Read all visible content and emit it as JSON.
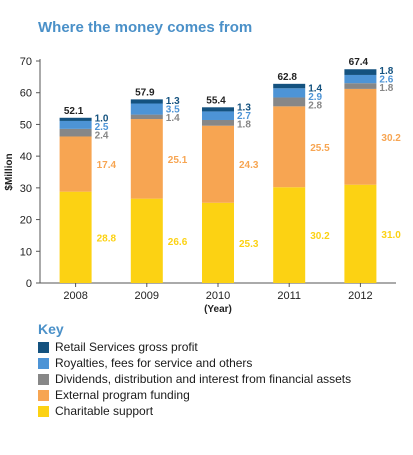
{
  "title": "Where the money comes from",
  "key": {
    "title": "Key"
  },
  "chart_data": {
    "type": "bar",
    "stacked": true,
    "title": "Where the money comes from",
    "xlabel": "(Year)",
    "ylabel": "$Million",
    "ylim": [
      0,
      70
    ],
    "yticks": [
      0,
      10,
      20,
      30,
      40,
      50,
      60,
      70
    ],
    "grid": false,
    "legend_placement": "bottom",
    "categories": [
      "2008",
      "2009",
      "2010",
      "2011",
      "2012"
    ],
    "totals": [
      "52.1",
      "57.9",
      "55.4",
      "62.8",
      "67.4"
    ],
    "series": [
      {
        "name": "Charitable support",
        "color": "#fcd213",
        "values": [
          28.8,
          26.6,
          25.3,
          30.2,
          31.0
        ],
        "labels": [
          "28.8",
          "26.6",
          "25.3",
          "30.2",
          "31.0"
        ]
      },
      {
        "name": "External program funding",
        "color": "#f7a552",
        "values": [
          17.4,
          25.1,
          24.3,
          25.5,
          30.2
        ],
        "labels": [
          "17.4",
          "25.1",
          "24.3",
          "25.5",
          "30.2"
        ]
      },
      {
        "name": "Dividends, distribution and interest from financial assets",
        "color": "#878787",
        "values": [
          2.4,
          1.4,
          1.8,
          2.8,
          1.8
        ],
        "labels": [
          "2.4",
          "1.4",
          "1.8",
          "2.8",
          "1.8"
        ]
      },
      {
        "name": "Royalties, fees for service and others",
        "color": "#4d94d6",
        "values": [
          2.5,
          3.5,
          2.7,
          2.9,
          2.6
        ],
        "labels": [
          "2.5",
          "3.5",
          "2.7",
          "2.9",
          "2.6"
        ]
      },
      {
        "name": "Retail Services gross profit",
        "color": "#14527f",
        "values": [
          1.0,
          1.3,
          1.3,
          1.4,
          1.8
        ],
        "labels": [
          "1.0",
          "1.3",
          "1.3",
          "1.4",
          "1.8"
        ]
      }
    ]
  }
}
